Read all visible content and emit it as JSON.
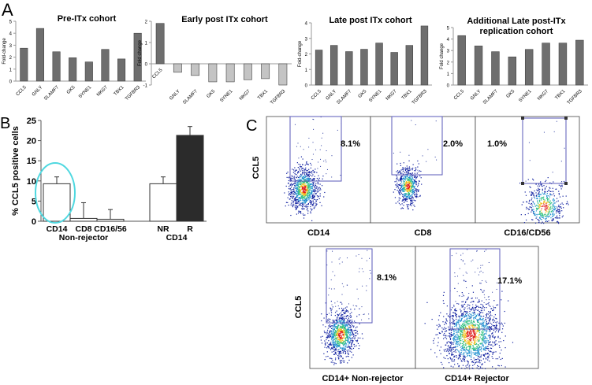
{
  "panel_labels": {
    "a": "A",
    "b": "B",
    "c": "C"
  },
  "chart_data": [
    {
      "type": "bar",
      "title": "Pre-ITx cohort",
      "ylabel": "Fold-change",
      "ylim": [
        0,
        5
      ],
      "yticks": [
        0,
        1,
        2,
        3,
        4,
        5
      ],
      "categories": [
        "CCL5",
        "GNLY",
        "SLAMF7",
        "GK5",
        "SYNE1",
        "NKG7",
        "TBX1",
        "TGFBR3"
      ],
      "values": [
        2.75,
        4.4,
        2.45,
        1.95,
        1.6,
        2.65,
        1.85,
        4.0
      ],
      "color": "#6e6e6e"
    },
    {
      "type": "bar",
      "title": "Early  post ITx cohort",
      "ylabel": "Fold change",
      "ylim": [
        -1,
        2
      ],
      "yticks": [
        -1,
        0,
        1,
        2
      ],
      "categories": [
        "CCL5",
        "GNLY",
        "SLAMF7",
        "GK5",
        "SYNE1",
        "NKG7",
        "TBX1",
        "TGFBR3"
      ],
      "values": [
        1.9,
        -0.4,
        -0.55,
        -0.85,
        -0.85,
        -0.75,
        -0.7,
        -1.0
      ],
      "color": "#6e6e6e",
      "neg_color": "#c4c4c4"
    },
    {
      "type": "bar",
      "title": "Late post ITx cohort",
      "ylabel": "Fold-change",
      "ylim": [
        0,
        4
      ],
      "yticks": [
        0,
        1,
        2,
        3,
        4
      ],
      "categories": [
        "CCL5",
        "GNLY",
        "SLAMF7",
        "GK5",
        "SYNE1",
        "NKG7",
        "TBX1",
        "TGFBR3"
      ],
      "values": [
        2.25,
        2.55,
        2.15,
        2.3,
        2.7,
        2.1,
        2.55,
        3.8
      ],
      "color": "#6e6e6e"
    },
    {
      "type": "bar",
      "title": "Additional Late post-ITx replication cohort",
      "title_lines": [
        "Additional Late post-ITx",
        "replication cohort"
      ],
      "ylabel": "Fold change",
      "ylim": [
        0,
        5
      ],
      "yticks": [
        0,
        1,
        2,
        3,
        4,
        5
      ],
      "categories": [
        "CCL5",
        "GNLY",
        "SLAMF7",
        "GK5",
        "SYNE1",
        "NKG7",
        "TBX1",
        "TGFBR3"
      ],
      "values": [
        4.3,
        3.4,
        2.9,
        2.45,
        3.1,
        3.65,
        3.65,
        3.9
      ],
      "color": "#6e6e6e"
    },
    {
      "type": "bar",
      "ylabel": "% CCL5 positive cells",
      "ylim": [
        0,
        25
      ],
      "yticks": [
        0,
        5,
        10,
        15,
        20,
        25
      ],
      "categories": [
        "CD14",
        "CD8",
        "CD16/56",
        "NR",
        "R"
      ],
      "values": [
        9.3,
        0.7,
        0.5,
        9.3,
        21.3
      ],
      "errors": [
        1.7,
        3.9,
        2.4,
        1.7,
        2.2
      ],
      "group_labels": [
        "Non-rejector",
        "CD14"
      ],
      "highlight": "CD14",
      "highlight_color": "#4fd8e0"
    }
  ],
  "flow": {
    "ylabel": "CCL5",
    "top": [
      {
        "xlabel": "CD14",
        "pct": "8.1%"
      },
      {
        "xlabel": "CD8",
        "pct": "2.0%"
      },
      {
        "xlabel": "CD16/CD56",
        "pct": "1.0%"
      }
    ],
    "bottom": [
      {
        "xlabel": "CD14+ Non-rejector",
        "pct": "8.1%"
      },
      {
        "xlabel": "CD14+ Rejector",
        "pct": "17.1%"
      }
    ],
    "gate_color": "#5a5ab8"
  }
}
